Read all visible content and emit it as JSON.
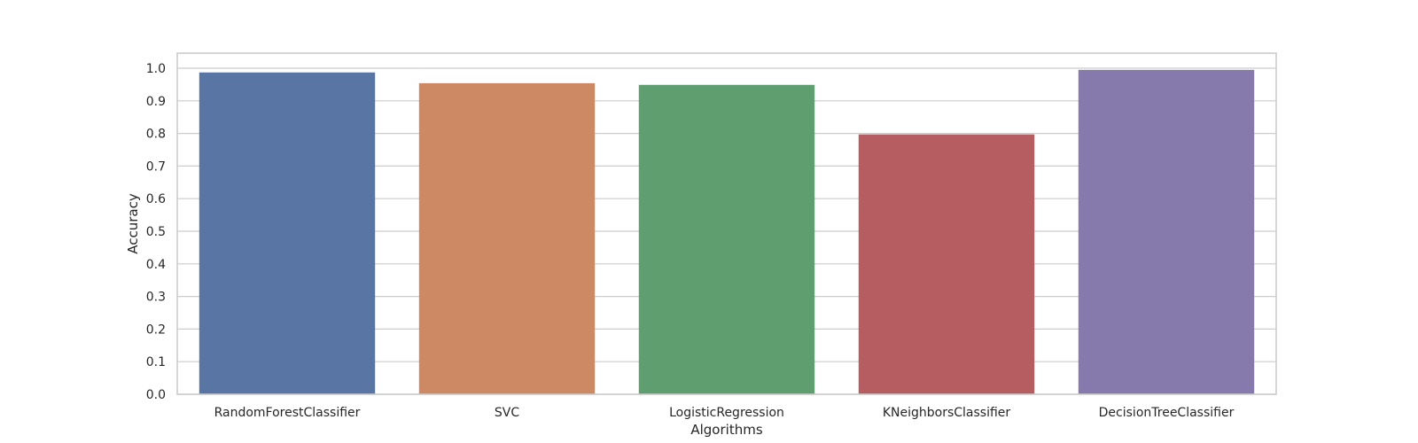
{
  "chart_data": {
    "type": "bar",
    "title": "",
    "xlabel": "Algorithms",
    "ylabel": "Accuracy",
    "categories": [
      "RandomForestClassifier",
      "SVC",
      "LogisticRegression",
      "KNeighborsClassifier",
      "DecisionTreeClassifier"
    ],
    "values": [
      0.987,
      0.954,
      0.949,
      0.797,
      0.995
    ],
    "ylim": [
      0.0,
      1.0
    ],
    "yticks": [
      "0.0",
      "0.1",
      "0.2",
      "0.3",
      "0.4",
      "0.5",
      "0.6",
      "0.7",
      "0.8",
      "0.9",
      "1.0"
    ],
    "ytick_values": [
      0.0,
      0.1,
      0.2,
      0.3,
      0.4,
      0.5,
      0.6,
      0.7,
      0.8,
      0.9,
      1.0
    ],
    "grid": true,
    "colors": [
      "#5975a4",
      "#cc8963",
      "#5f9e6e",
      "#b55d60",
      "#857aab"
    ]
  }
}
